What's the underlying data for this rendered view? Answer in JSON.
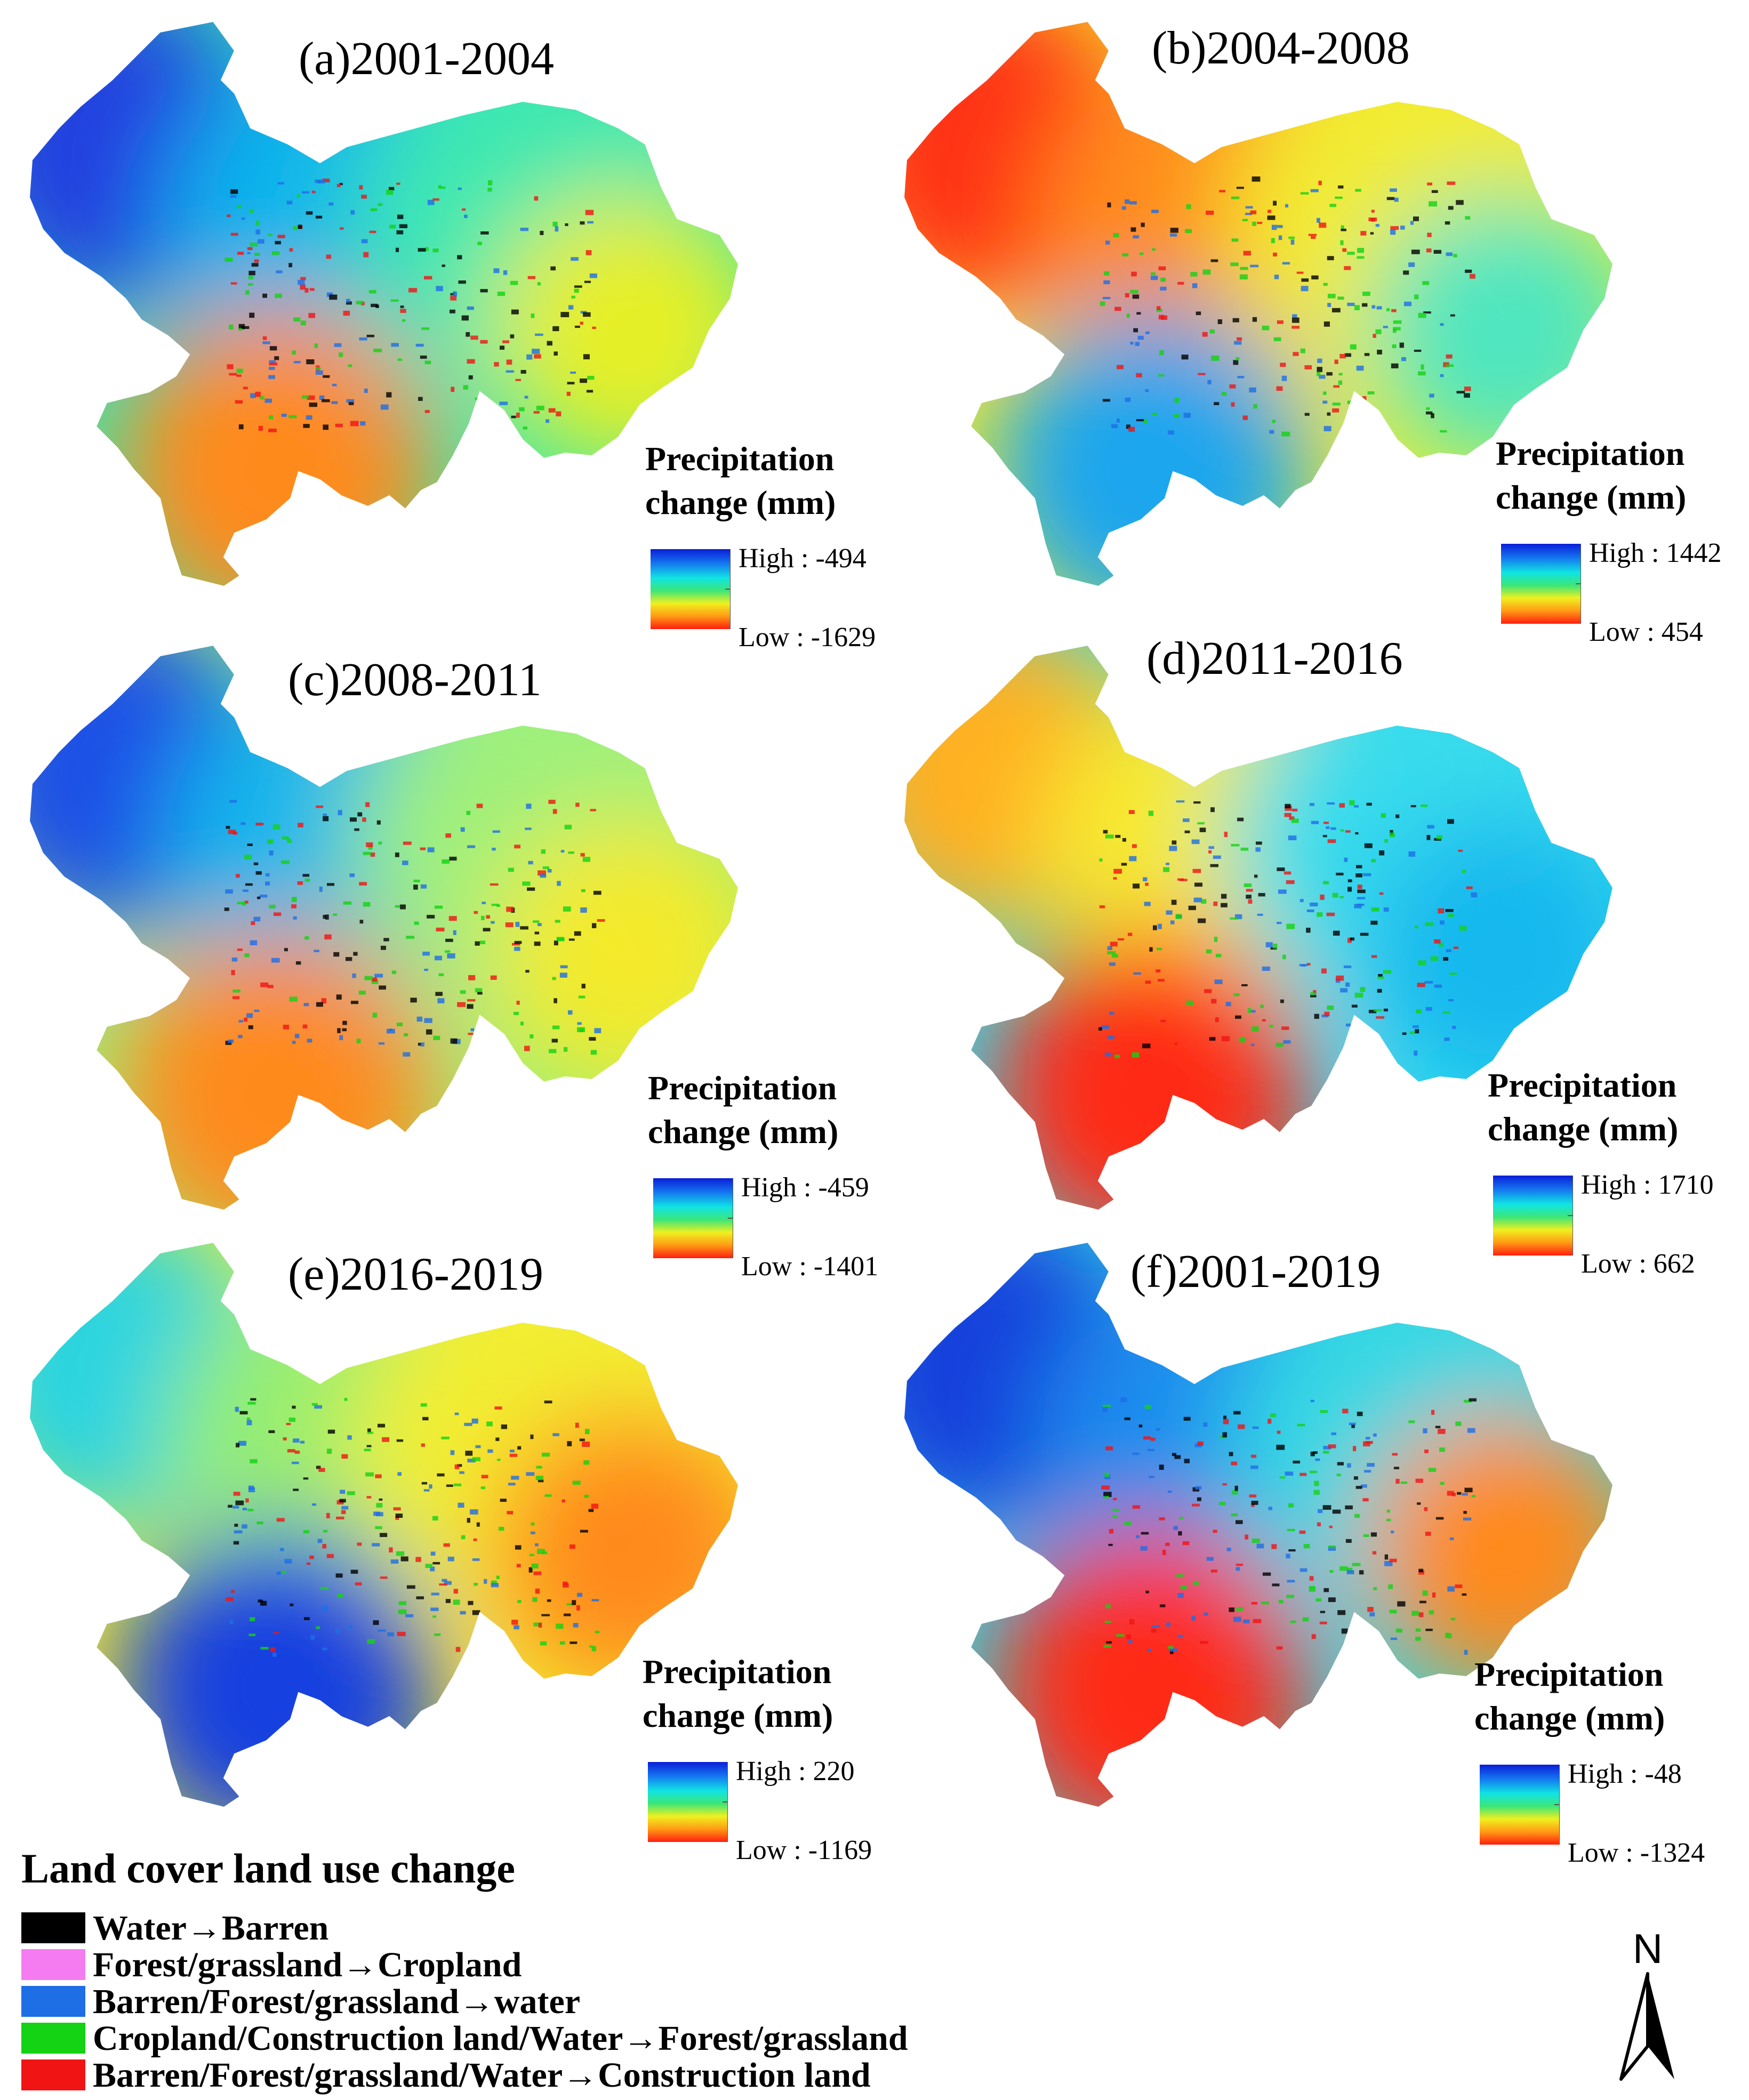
{
  "ramp_colors": [
    "#0a1ed8",
    "#1478f0",
    "#10e4e4",
    "#3ce678",
    "#f0f020",
    "#ff9a14",
    "#ff1e10"
  ],
  "legend_title_line1": "Precipitation",
  "legend_title_line2": "change (mm)",
  "panels": [
    {
      "title": "(a)2001-2004",
      "high": "High : -494",
      "low": "Low : -1629",
      "colors": [
        "#2040e0",
        "#10b4ec",
        "#3ce8b0",
        "#e6ef28",
        "#ff8a1a"
      ]
    },
    {
      "title": "(b)2004-2008",
      "high": "High : 1442",
      "low": "Low : 454",
      "colors": [
        "#ff3218",
        "#ff8c1a",
        "#f2ec30",
        "#50e6c0",
        "#1aa6ee"
      ]
    },
    {
      "title": "(c)2008-2011",
      "high": "High : -459",
      "low": "Low : -1401",
      "colors": [
        "#1e50e6",
        "#18b6ec",
        "#9ef07c",
        "#f4ea2a",
        "#ff8a1a"
      ]
    },
    {
      "title": "(d)2011-2016",
      "high": "High : 1710",
      "low": "Low : 662",
      "colors": [
        "#ffb020",
        "#f6ea32",
        "#38dcec",
        "#18b8ee",
        "#ff2a14"
      ]
    },
    {
      "title": "(e)2016-2019",
      "high": "High : 220",
      "low": "Low : -1169",
      "colors": [
        "#2cd4e0",
        "#96ee70",
        "#f2ee30",
        "#ff8a1a",
        "#1440e0"
      ]
    },
    {
      "title": "(f)2001-2019",
      "high": "High : -48",
      "low": "Low : -1324",
      "colors": [
        "#1640dc",
        "#1a8cee",
        "#36d8e4",
        "#ff8a1a",
        "#ff2a14"
      ]
    }
  ],
  "land_cover": {
    "title": "Land cover land use change",
    "items": [
      {
        "label": "Water→Barren",
        "color": "#000000"
      },
      {
        "label": "Forest/grassland→Cropland",
        "color": "#f47cf0"
      },
      {
        "label": "Barren/Forest/grassland→water",
        "color": "#1e6ee6"
      },
      {
        "label": "Cropland/Construction land/Water→Forest/grassland",
        "color": "#14d214"
      },
      {
        "label": "Barren/Forest/grassland/Water→Construction land",
        "color": "#f01414"
      }
    ]
  },
  "north_arrow": "N"
}
